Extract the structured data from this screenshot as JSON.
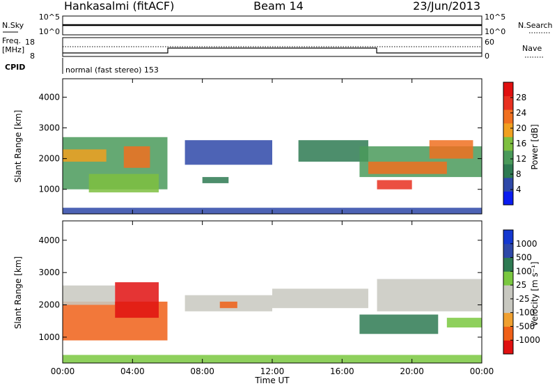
{
  "header": {
    "station": "Hankasalmi (fitACF)",
    "beam": "Beam 14",
    "date": "23/Jun/2013"
  },
  "strip_nsky": {
    "left_label": "N.Sky",
    "left_ticks": [
      "10^5",
      "10^0"
    ],
    "right_ticks": [
      "10^5",
      "10^0"
    ],
    "right_label": "N.Search"
  },
  "strip_freq": {
    "left_label_1": "Freq.",
    "left_label_2": "[MHz]",
    "left_ticks": [
      "18",
      "8"
    ],
    "right_ticks": [
      "60",
      "0"
    ],
    "right_label": "Nave"
  },
  "cpid": {
    "label": "CPID",
    "text": "normal (fast stereo) 153"
  },
  "colors": {
    "power": [
      "#0a1cf0",
      "#2e48a8",
      "#2e7a52",
      "#4a9a5a",
      "#7ec040",
      "#f0a020",
      "#f07020",
      "#e83020",
      "#e01010"
    ],
    "velocity": [
      "#e01010",
      "#f06018",
      "#f0a030",
      "#c8c8c0",
      "#c8c8c0",
      "#7ac840",
      "#2e7a52",
      "#2e48a8",
      "#1438d0"
    ]
  },
  "chart_data": [
    {
      "type": "heatmap",
      "name": "power",
      "ylabel": "Slant Range [km]",
      "y_ticks": [
        "1000",
        "2000",
        "3000",
        "4000"
      ],
      "y_tick_values": [
        1000,
        2000,
        3000,
        4000
      ],
      "ylim": [
        200,
        4600
      ],
      "xlim": [
        0,
        24
      ],
      "colorbar": {
        "label": "Power [dB]",
        "range": [
          0,
          32
        ],
        "ticks": [
          "4",
          "8",
          "12",
          "16",
          "20",
          "24",
          "28"
        ],
        "tick_values": [
          4,
          8,
          12,
          16,
          20,
          24,
          28
        ]
      },
      "regions": [
        {
          "t0": 0.0,
          "t1": 6.0,
          "r0": 1000,
          "r1": 2700,
          "level": 12
        },
        {
          "t0": 0.0,
          "t1": 2.5,
          "r0": 1900,
          "r1": 2300,
          "level": 20
        },
        {
          "t0": 3.5,
          "t1": 5.0,
          "r0": 1700,
          "r1": 2400,
          "level": 24
        },
        {
          "t0": 1.5,
          "t1": 5.5,
          "r0": 900,
          "r1": 1500,
          "level": 16
        },
        {
          "t0": 7.0,
          "t1": 12.0,
          "r0": 1800,
          "r1": 2600,
          "level": 6
        },
        {
          "t0": 8.0,
          "t1": 9.5,
          "r0": 1200,
          "r1": 1400,
          "level": 8
        },
        {
          "t0": 13.5,
          "t1": 17.5,
          "r0": 1900,
          "r1": 2600,
          "level": 8
        },
        {
          "t0": 17.0,
          "t1": 24.0,
          "r0": 1400,
          "r1": 2400,
          "level": 14
        },
        {
          "t0": 17.5,
          "t1": 22.0,
          "r0": 1500,
          "r1": 1900,
          "level": 22
        },
        {
          "t0": 18.0,
          "t1": 20.0,
          "r0": 1000,
          "r1": 1300,
          "level": 26
        },
        {
          "t0": 21.0,
          "t1": 23.5,
          "r0": 2000,
          "r1": 2600,
          "level": 22
        },
        {
          "t0": 0.0,
          "t1": 24.0,
          "r0": 200,
          "r1": 400,
          "level": 6
        }
      ]
    },
    {
      "type": "heatmap",
      "name": "velocity",
      "ylabel": "Slant Range [km]",
      "y_ticks": [
        "1000",
        "2000",
        "3000",
        "4000"
      ],
      "y_tick_values": [
        1000,
        2000,
        3000,
        4000
      ],
      "ylim": [
        200,
        4600
      ],
      "xlim": [
        0,
        24
      ],
      "xlabel": "Time UT",
      "x_ticks": [
        "00:00",
        "04:00",
        "08:00",
        "12:00",
        "16:00",
        "20:00",
        "00:00"
      ],
      "x_tick_values": [
        0,
        4,
        8,
        12,
        16,
        20,
        24
      ],
      "colorbar": {
        "label": "Velocity [m s⁻¹]",
        "ticks": [
          "1000",
          "500",
          "100",
          "25",
          "-25",
          "-100",
          "-500",
          "-1000"
        ]
      },
      "regions": [
        {
          "t0": 0.0,
          "t1": 6.0,
          "r0": 900,
          "r1": 2100,
          "level": -300
        },
        {
          "t0": 0.0,
          "t1": 3.0,
          "r0": 2000,
          "r1": 2600,
          "level": 0
        },
        {
          "t0": 3.0,
          "t1": 5.5,
          "r0": 1600,
          "r1": 2700,
          "level": -600
        },
        {
          "t0": 7.0,
          "t1": 12.0,
          "r0": 1800,
          "r1": 2300,
          "level": 0
        },
        {
          "t0": 9.0,
          "t1": 10.0,
          "r0": 1900,
          "r1": 2100,
          "level": -300
        },
        {
          "t0": 12.0,
          "t1": 17.5,
          "r0": 1900,
          "r1": 2500,
          "level": 0
        },
        {
          "t0": 17.0,
          "t1": 21.5,
          "r0": 1100,
          "r1": 1700,
          "level": 300
        },
        {
          "t0": 18.0,
          "t1": 24.0,
          "r0": 1800,
          "r1": 2800,
          "level": 0
        },
        {
          "t0": 22.0,
          "t1": 24.0,
          "r0": 1300,
          "r1": 1600,
          "level": 80
        },
        {
          "t0": 0.0,
          "t1": 24.0,
          "r0": 200,
          "r1": 450,
          "level": 60
        }
      ]
    }
  ]
}
